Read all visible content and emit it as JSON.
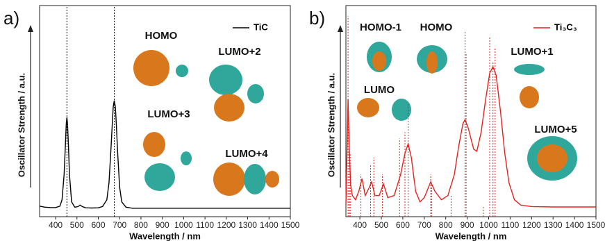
{
  "chart_data": [
    {
      "type": "line",
      "panel_label": "a)",
      "xlabel": "Wavelength / nm",
      "ylabel": "Oscillator Strength / a.u.",
      "xlim": [
        325,
        1500
      ],
      "ylim": [
        0,
        1
      ],
      "xticks": [
        400,
        500,
        600,
        700,
        800,
        900,
        1000,
        1100,
        1200,
        1300,
        1400,
        1500
      ],
      "x": [
        325,
        350,
        380,
        400,
        420,
        430,
        440,
        445,
        450,
        453,
        456,
        460,
        465,
        475,
        490,
        505,
        515,
        525,
        540,
        570,
        600,
        620,
        640,
        650,
        660,
        665,
        670,
        675,
        680,
        685,
        690,
        700,
        710,
        730,
        760,
        800,
        900,
        1000,
        1200,
        1500
      ],
      "series": [
        {
          "name": "TiC",
          "color": "#000000",
          "values": [
            0.05,
            0.045,
            0.043,
            0.043,
            0.05,
            0.08,
            0.2,
            0.32,
            0.44,
            0.47,
            0.44,
            0.34,
            0.2,
            0.07,
            0.045,
            0.048,
            0.055,
            0.048,
            0.042,
            0.041,
            0.042,
            0.048,
            0.08,
            0.16,
            0.33,
            0.43,
            0.52,
            0.55,
            0.52,
            0.43,
            0.32,
            0.14,
            0.07,
            0.045,
            0.04,
            0.04,
            0.04,
            0.04,
            0.04,
            0.04
          ]
        }
      ],
      "transitions": {
        "x": [
          453,
          675
        ],
        "values": [
          1,
          1
        ]
      },
      "annotations": [
        "HOMO",
        "LUMO+2",
        "LUMO+3",
        "LUMO+4"
      ]
    },
    {
      "type": "line",
      "panel_label": "b)",
      "xlabel": "Wavelength / nm",
      "ylabel": "Oscillator Strength / a.u.",
      "xlim": [
        335,
        1500
      ],
      "ylim": [
        0,
        1
      ],
      "xticks": [
        400,
        500,
        600,
        700,
        800,
        900,
        1000,
        1100,
        1200,
        1300,
        1400,
        1500
      ],
      "x": [
        335,
        340,
        345,
        350,
        357,
        365,
        380,
        395,
        410,
        425,
        440,
        455,
        470,
        490,
        510,
        530,
        560,
        590,
        610,
        625,
        640,
        660,
        680,
        700,
        730,
        750,
        780,
        810,
        840,
        860,
        880,
        890,
        905,
        930,
        945,
        965,
        985,
        1005,
        1020,
        1035,
        1055,
        1075,
        1095,
        1120,
        1150,
        1200,
        1300,
        1500
      ],
      "series": [
        {
          "name": "Ti₃C₃",
          "color": "#e8211c",
          "values": [
            0.06,
            0.3,
            0.556,
            0.35,
            0.15,
            0.1,
            0.08,
            0.12,
            0.18,
            0.1,
            0.13,
            0.165,
            0.1,
            0.1,
            0.155,
            0.09,
            0.1,
            0.2,
            0.3,
            0.345,
            0.28,
            0.12,
            0.07,
            0.09,
            0.165,
            0.12,
            0.08,
            0.1,
            0.2,
            0.33,
            0.44,
            0.46,
            0.42,
            0.32,
            0.31,
            0.4,
            0.55,
            0.68,
            0.71,
            0.67,
            0.5,
            0.3,
            0.16,
            0.08,
            0.055,
            0.048,
            0.046,
            0.046
          ]
        }
      ],
      "transitions": {
        "x": [
          345,
          350,
          355,
          405,
          450,
          465,
          505,
          585,
          610,
          625,
          730,
          735,
          825,
          890,
          895,
          975,
          1005,
          1020,
          1030
        ],
        "values": [
          0.95,
          0.4,
          0.3,
          0.2,
          0.25,
          0.28,
          0.2,
          0.37,
          0.4,
          0.54,
          0.2,
          0.15,
          0.1,
          0.88,
          0.77,
          0.05,
          0.85,
          0.73,
          0.8
        ]
      },
      "annotations": [
        "HOMO-1",
        "HOMO",
        "LUMO",
        "LUMO+1",
        "LUMO+5"
      ]
    }
  ]
}
